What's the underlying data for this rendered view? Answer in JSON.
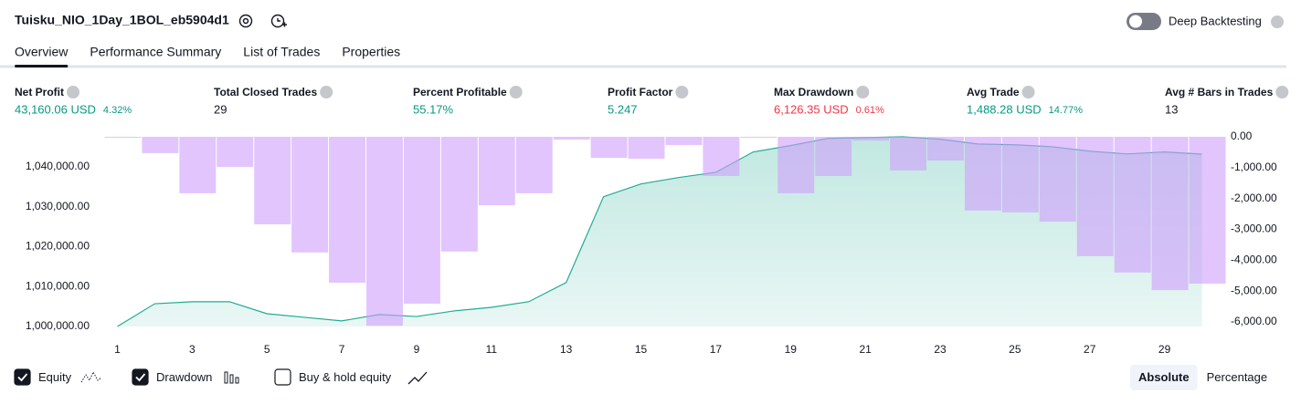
{
  "header": {
    "title": "Tuisku_NIO_1Day_1BOL_eb5904d1",
    "toggle_label": "Deep Backtesting",
    "toggle_on": false
  },
  "tabs": {
    "items": [
      "Overview",
      "Performance Summary",
      "List of Trades",
      "Properties"
    ],
    "active": 0
  },
  "stats": [
    {
      "label": "Net Profit",
      "value": "43,160.06 USD",
      "sub": "4.32%",
      "color": "#089981"
    },
    {
      "label": "Total Closed Trades",
      "value": "29",
      "color": "#131722"
    },
    {
      "label": "Percent Profitable",
      "value": "55.17%",
      "color": "#089981"
    },
    {
      "label": "Profit Factor",
      "value": "5.247",
      "color": "#089981"
    },
    {
      "label": "Max Drawdown",
      "value": "6,126.35 USD",
      "sub": "0.61%",
      "color": "#f23645"
    },
    {
      "label": "Avg Trade",
      "value": "1,488.28 USD",
      "sub": "14.77%",
      "color": "#089981"
    },
    {
      "label": "Avg # Bars in Trades",
      "value": "13",
      "color": "#131722"
    }
  ],
  "chart_data": {
    "type": "combo",
    "x": [
      1,
      2,
      3,
      4,
      5,
      6,
      7,
      8,
      9,
      10,
      11,
      12,
      13,
      14,
      15,
      16,
      17,
      18,
      19,
      20,
      21,
      22,
      23,
      24,
      25,
      26,
      27,
      28,
      29,
      30
    ],
    "xlim": [
      0.5,
      30.5
    ],
    "xticks": [
      1,
      3,
      5,
      7,
      9,
      11,
      13,
      15,
      17,
      19,
      21,
      23,
      25,
      27,
      29
    ],
    "ylim": [
      1000000,
      1047500
    ],
    "yticks": [
      {
        "value": 1000000,
        "label": "1,000,000.00"
      },
      {
        "value": 1010000,
        "label": "1,010,000.00"
      },
      {
        "value": 1020000,
        "label": "1,020,000.00"
      },
      {
        "value": 1030000,
        "label": "1,030,000.00"
      },
      {
        "value": 1040000,
        "label": "1,040,000.00"
      }
    ],
    "y2lim": [
      -6150,
      0
    ],
    "y2ticks": [
      {
        "value": 0,
        "label": "0.00"
      },
      {
        "value": -1000,
        "label": "-1,000.00"
      },
      {
        "value": -2000,
        "label": "-2,000.00"
      },
      {
        "value": -3000,
        "label": "-3,000.00"
      },
      {
        "value": -4000,
        "label": "-4,000.00"
      },
      {
        "value": -5000,
        "label": "-5,000.00"
      },
      {
        "value": -6000,
        "label": "-6,000.00"
      }
    ],
    "series": [
      {
        "name": "Equity",
        "type": "area",
        "color": "#22ab94",
        "checked": true,
        "values": [
          1000000,
          1005700,
          1006200,
          1006200,
          1003200,
          1002300,
          1001400,
          1003000,
          1002500,
          1003900,
          1004800,
          1006200,
          1011000,
          1032500,
          1035700,
          1037300,
          1038600,
          1043700,
          1045300,
          1047100,
          1047300,
          1047500,
          1046900,
          1045700,
          1045500,
          1045000,
          1043900,
          1043200,
          1043700,
          1043160
        ]
      },
      {
        "name": "Drawdown",
        "type": "bar",
        "axis": "y2",
        "color": "#ce9ffc",
        "checked": true,
        "values": [
          -30,
          -530,
          -1830,
          -980,
          -2840,
          -3750,
          -4730,
          -6126,
          -5410,
          -3720,
          -2220,
          -1830,
          -90,
          -680,
          -710,
          -270,
          -1270,
          0,
          -1830,
          -1270,
          -120,
          -1090,
          -770,
          -2390,
          -2450,
          -2750,
          -3870,
          -4400,
          -4970,
          -4760
        ]
      }
    ]
  },
  "buy_hold": {
    "label": "Buy & hold equity",
    "checked": false
  },
  "modes": {
    "items": [
      "Absolute",
      "Percentage"
    ],
    "active": 0
  }
}
